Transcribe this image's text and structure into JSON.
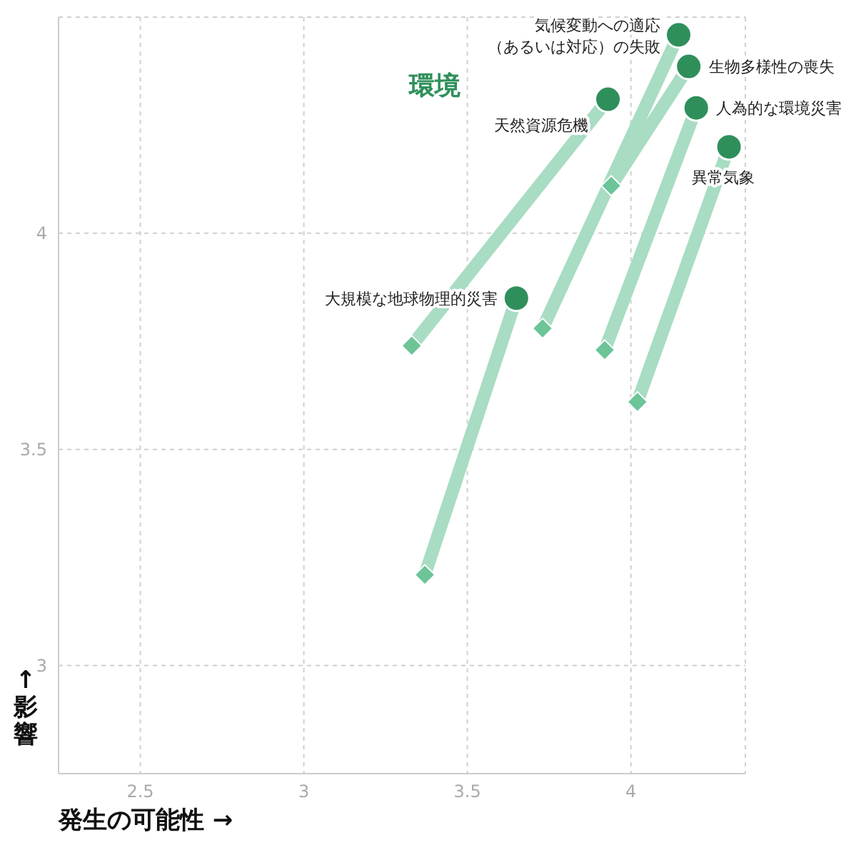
{
  "chart_data": {
    "type": "scatter",
    "title": "環境",
    "xlabel": "発生の可能性 →",
    "ylabel": "↑影響",
    "xlim": [
      2.25,
      4.35
    ],
    "ylim": [
      2.75,
      4.5
    ],
    "xticks": [
      2.5,
      3,
      3.5,
      4
    ],
    "yticks": [
      3,
      3.5,
      4
    ],
    "grid": true,
    "legend": false,
    "series": [
      {
        "color": "#2f8f5b",
        "marker": "circle",
        "x": [
          4.146,
          4.177,
          3.93,
          4.2,
          4.3,
          3.65
        ],
        "values": [
          4.459,
          4.386,
          4.31,
          4.29,
          4.2,
          3.85
        ]
      },
      {
        "color": "#6cc497",
        "marker": "diamond",
        "x": [
          3.73,
          3.94,
          3.33,
          3.92,
          4.02,
          3.37
        ],
        "values": [
          3.78,
          4.11,
          3.74,
          3.73,
          3.61,
          3.21
        ]
      },
      {
        "type": "line",
        "color": "#a8dcc3",
        "x": [
          3.73,
          4.146
        ],
        "values": [
          3.78,
          4.459
        ]
      },
      {
        "type": "line",
        "color": "#a8dcc3",
        "x": [
          3.94,
          4.177
        ],
        "values": [
          4.11,
          4.386
        ]
      },
      {
        "type": "line",
        "color": "#a8dcc3",
        "x": [
          3.33,
          3.93
        ],
        "values": [
          3.74,
          4.31
        ]
      },
      {
        "type": "line",
        "color": "#a8dcc3",
        "x": [
          3.92,
          4.2
        ],
        "values": [
          3.73,
          4.29
        ]
      },
      {
        "type": "line",
        "color": "#a8dcc3",
        "x": [
          4.02,
          4.3
        ],
        "values": [
          3.61,
          4.2
        ]
      },
      {
        "type": "line",
        "color": "#a8dcc3",
        "x": [
          3.37,
          3.65
        ],
        "values": [
          3.21,
          3.85
        ]
      }
    ],
    "annotations": [
      {
        "text": "気候変動への適応（あるいは対応）の失敗",
        "x": 4.146,
        "y": 4.459
      },
      {
        "text": "生物多様性の喪失",
        "x": 4.177,
        "y": 4.386
      },
      {
        "text": "天然資源危機",
        "x": 3.93,
        "y": 4.31
      },
      {
        "text": "人為的な環境災害",
        "x": 4.2,
        "y": 4.29
      },
      {
        "text": "異常気象",
        "x": 4.3,
        "y": 4.2
      },
      {
        "text": "大規模な地球物理的災害",
        "x": 3.65,
        "y": 3.85
      }
    ]
  }
}
